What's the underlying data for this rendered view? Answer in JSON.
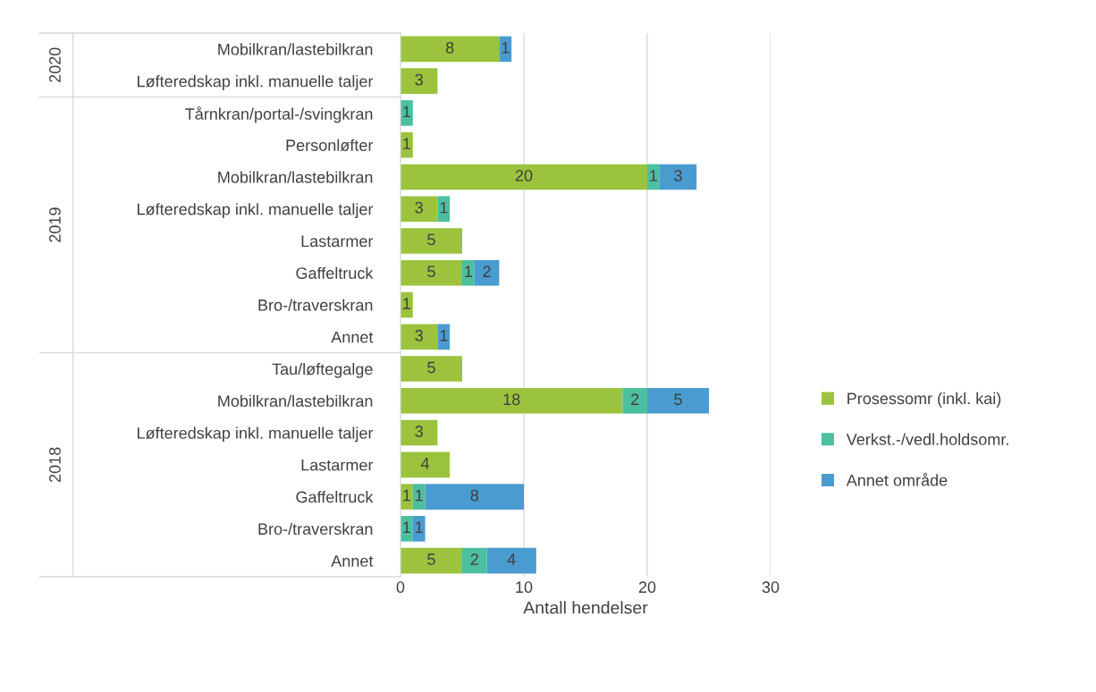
{
  "chart_data": {
    "type": "bar",
    "orientation": "horizontal",
    "stacked": true,
    "xlabel": "Antall hendelser",
    "categories": [
      "Mobilkran/lastebilkran",
      "Løfteredskap inkl. manuelle taljer",
      "Tårnkran/portal-/svingkran",
      "Personløfter",
      "Mobilkran/lastebilkran",
      "Løfteredskap inkl. manuelle taljer",
      "Lastarmer",
      "Gaffeltruck",
      "Bro-/traverskran",
      "Annet",
      "Tau/løftegalge",
      "Mobilkran/lastebilkran",
      "Løfteredskap inkl. manuelle taljer",
      "Lastarmer",
      "Gaffeltruck",
      "Bro-/traverskran",
      "Annet"
    ],
    "series": [
      {
        "name": "Prosessomr (inkl. kai)",
        "color": "#9bc33d",
        "values": [
          8,
          3,
          null,
          1,
          20,
          3,
          5,
          5,
          1,
          3,
          5,
          18,
          3,
          4,
          1,
          null,
          5
        ]
      },
      {
        "name": "Verkst.-/vedl.holdsomr.",
        "color": "#4cbf9f",
        "values": [
          null,
          null,
          1,
          null,
          1,
          1,
          null,
          1,
          null,
          null,
          null,
          2,
          null,
          null,
          1,
          1,
          2
        ]
      },
      {
        "name": "Annet område",
        "color": "#4a9bd0",
        "values": [
          1,
          null,
          null,
          null,
          3,
          null,
          null,
          2,
          null,
          1,
          null,
          5,
          null,
          null,
          8,
          1,
          4
        ]
      }
    ],
    "xlim": [
      0,
      30
    ],
    "xticks": [
      0,
      10,
      20,
      30
    ],
    "grid": "x",
    "legend": "right",
    "data_labels": true,
    "annotations": [
      "2020",
      "2019",
      "2018"
    ]
  }
}
